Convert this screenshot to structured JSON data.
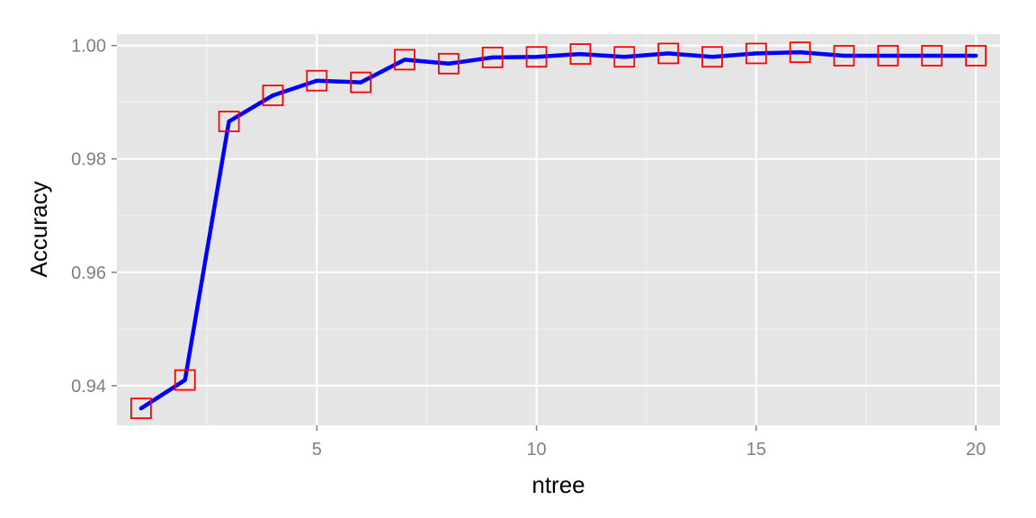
{
  "chart_data": {
    "type": "line",
    "title": "",
    "xlabel": "ntree",
    "ylabel": "Accuracy",
    "xlim": [
      0.45,
      20.55
    ],
    "ylim": [
      0.933,
      1.002
    ],
    "x_ticks": [
      5,
      10,
      15,
      20
    ],
    "x_tick_labels": [
      "5",
      "10",
      "15",
      "20"
    ],
    "y_ticks": [
      0.94,
      0.96,
      0.98,
      1.0
    ],
    "y_tick_labels": [
      "0.94",
      "0.96",
      "0.98",
      "1.00"
    ],
    "grid": true,
    "x": [
      1,
      2,
      3,
      4,
      5,
      6,
      7,
      8,
      9,
      10,
      11,
      12,
      13,
      14,
      15,
      16,
      17,
      18,
      19,
      20
    ],
    "series": [
      {
        "values": [
          0.936,
          0.941,
          0.9866,
          0.9912,
          0.9938,
          0.9935,
          0.9975,
          0.9968,
          0.9979,
          0.998,
          0.9985,
          0.998,
          0.9986,
          0.998,
          0.9986,
          0.9988,
          0.9982,
          0.9982,
          0.9982,
          0.9982
        ],
        "line_color": "#0000ff",
        "marker": "open-square",
        "marker_color": "#ff0000"
      }
    ],
    "colors": {
      "panel_background": "#e5e5e5",
      "grid_major": "#ffffff",
      "grid_minor": "#f2f2f2"
    }
  }
}
